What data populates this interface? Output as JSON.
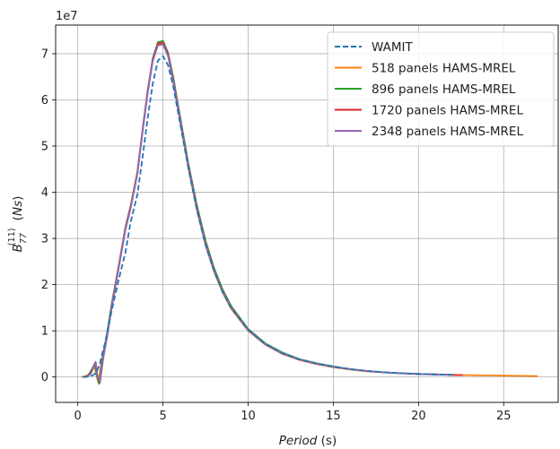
{
  "chart_data": {
    "type": "line",
    "offset_label": "1e7",
    "xlabel": "Period (s)",
    "ylabel": "B_77^(11) (Ns)",
    "xlim": [
      -1.3,
      28.2
    ],
    "ylim": [
      -0.55,
      7.62
    ],
    "y_scale_multiplier": 10000000,
    "grid": true,
    "legend_position": "upper right",
    "x_ticks": [
      0,
      5,
      10,
      15,
      20,
      25
    ],
    "y_ticks": [
      0,
      1,
      2,
      3,
      4,
      5,
      6,
      7
    ],
    "series": [
      {
        "name": "WAMIT",
        "color": "#1f77b4",
        "dashed": true,
        "x": [
          0.3,
          0.7,
          0.9,
          1.1,
          1.3,
          1.6,
          2.0,
          2.4,
          2.8,
          3.1,
          3.5,
          3.8,
          4.1,
          4.4,
          4.7,
          5.0,
          5.3,
          5.6,
          6.0,
          6.5,
          7.0,
          7.5,
          8.0,
          8.5,
          9.0,
          10,
          11,
          12,
          13,
          14,
          15,
          16,
          17,
          18,
          19,
          20,
          21,
          22
        ],
        "y": [
          0,
          0.01,
          0.04,
          0.1,
          0.3,
          0.75,
          1.45,
          2.1,
          2.7,
          3.35,
          3.95,
          4.75,
          5.6,
          6.35,
          6.85,
          6.95,
          6.75,
          6.3,
          5.5,
          4.5,
          3.6,
          2.85,
          2.3,
          1.85,
          1.5,
          1.02,
          0.72,
          0.52,
          0.38,
          0.29,
          0.22,
          0.17,
          0.13,
          0.1,
          0.08,
          0.065,
          0.055,
          0.045
        ]
      },
      {
        "name": "518 panels HAMS-MREL",
        "color": "#ff7f0e",
        "dashed": false,
        "x": [
          0.2,
          0.5,
          0.8,
          0.95,
          1.05,
          1.2,
          1.4,
          1.7,
          2.0,
          2.4,
          2.8,
          3.1,
          3.5,
          3.8,
          4.1,
          4.4,
          4.7,
          5.0,
          5.3,
          5.6,
          6.0,
          6.5,
          7.0,
          7.5,
          8.0,
          8.5,
          9.0,
          10,
          11,
          12,
          13,
          14,
          15,
          16,
          17,
          18,
          19,
          20,
          21,
          22,
          23,
          24,
          25,
          26,
          27
        ],
        "y": [
          0,
          0.02,
          0.1,
          0.25,
          0.12,
          -0.12,
          0.35,
          0.85,
          1.55,
          2.35,
          3.2,
          3.65,
          4.4,
          5.3,
          6.15,
          6.85,
          7.2,
          7.22,
          6.95,
          6.4,
          5.55,
          4.5,
          3.6,
          2.85,
          2.28,
          1.83,
          1.48,
          1.0,
          0.7,
          0.5,
          0.37,
          0.28,
          0.21,
          0.16,
          0.12,
          0.1,
          0.08,
          0.065,
          0.055,
          0.045,
          0.04,
          0.035,
          0.03,
          0.025,
          0.02
        ]
      },
      {
        "name": "896 panels HAMS-MREL",
        "color": "#2ca02c",
        "dashed": false,
        "x": [
          0.3,
          0.6,
          0.85,
          1.0,
          1.1,
          1.25,
          1.45,
          1.7,
          2.0,
          2.4,
          2.8,
          3.1,
          3.5,
          3.8,
          4.1,
          4.4,
          4.7,
          5.0,
          5.3,
          5.6,
          6.0,
          6.5,
          7.0,
          7.5,
          8.0,
          8.5,
          9.0,
          10,
          11,
          12,
          13,
          14,
          15,
          16,
          17,
          18,
          19,
          20,
          21,
          22
        ],
        "y": [
          0,
          0.03,
          0.18,
          0.3,
          0.05,
          -0.15,
          0.4,
          0.9,
          1.6,
          2.4,
          3.25,
          3.7,
          4.45,
          5.35,
          6.2,
          6.9,
          7.25,
          7.28,
          7.02,
          6.5,
          5.65,
          4.6,
          3.7,
          2.95,
          2.36,
          1.9,
          1.54,
          1.04,
          0.73,
          0.53,
          0.39,
          0.3,
          0.23,
          0.17,
          0.13,
          0.1,
          0.08,
          0.065,
          0.055,
          0.045
        ]
      },
      {
        "name": "1720 panels HAMS-MREL",
        "color": "#d62728",
        "dashed": false,
        "x": [
          0.4,
          0.7,
          0.9,
          1.05,
          1.15,
          1.3,
          1.5,
          1.75,
          2.0,
          2.4,
          2.8,
          3.1,
          3.5,
          3.8,
          4.1,
          4.4,
          4.7,
          5.0,
          5.3,
          5.6,
          6.0,
          6.5,
          7.0,
          7.5,
          8.0,
          8.5,
          9.0,
          10,
          11,
          12,
          13,
          14,
          15,
          16,
          17,
          18,
          19,
          20,
          21,
          22,
          22.6
        ],
        "y": [
          0,
          0.05,
          0.2,
          0.32,
          0.02,
          -0.12,
          0.45,
          0.95,
          1.55,
          2.38,
          3.22,
          3.68,
          4.42,
          5.32,
          6.17,
          6.87,
          7.22,
          7.24,
          6.98,
          6.44,
          5.6,
          4.55,
          3.65,
          2.9,
          2.32,
          1.86,
          1.51,
          1.02,
          0.71,
          0.51,
          0.38,
          0.29,
          0.22,
          0.17,
          0.13,
          0.1,
          0.08,
          0.065,
          0.055,
          0.045,
          0.04
        ]
      },
      {
        "name": "2348 panels HAMS-MREL",
        "color": "#9467bd",
        "dashed": false,
        "x": [
          0.5,
          0.75,
          0.95,
          1.05,
          1.15,
          1.3,
          1.5,
          1.75,
          2.0,
          2.4,
          2.8,
          3.1,
          3.5,
          3.8,
          4.1,
          4.4,
          4.7,
          5.0,
          5.3,
          5.6,
          6.0,
          6.5,
          7.0,
          7.5,
          8.0,
          8.5,
          9.0,
          10,
          11,
          12,
          13,
          14,
          15,
          16,
          17,
          18,
          19,
          20,
          21,
          21.8
        ],
        "y": [
          0,
          0.06,
          0.22,
          0.33,
          0.03,
          -0.1,
          0.42,
          0.93,
          1.52,
          2.35,
          3.2,
          3.65,
          4.4,
          5.3,
          6.14,
          6.84,
          7.18,
          7.2,
          6.95,
          6.41,
          5.57,
          4.52,
          3.62,
          2.88,
          2.3,
          1.85,
          1.5,
          1.01,
          0.71,
          0.51,
          0.38,
          0.29,
          0.22,
          0.17,
          0.13,
          0.1,
          0.08,
          0.065,
          0.055,
          0.05
        ]
      }
    ]
  }
}
